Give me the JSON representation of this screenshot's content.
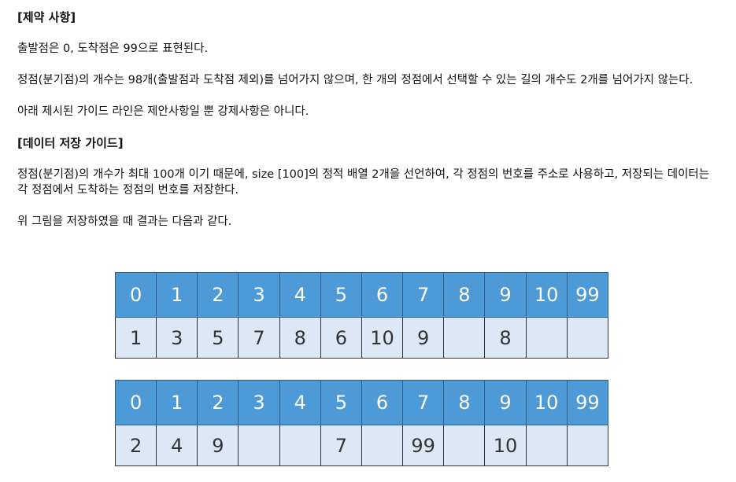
{
  "section1": {
    "heading": "[제약 사항]",
    "paragraphs": [
      "출발점은 0, 도착점은 99으로 표현된다.",
      "정점(분기점)의 개수는 98개(출발점과 도착점 제외)를 넘어가지 않으며, 한 개의 정점에서 선택할 수 있는 길의 개수도 2개를 넘어가지 않는다.",
      "아래 제시된 가이드 라인은 제안사항일 뿐 강제사항은 아니다."
    ]
  },
  "section2": {
    "heading": "[데이터 저장 가이드]",
    "paragraphs": [
      "정점(분기점)의 개수가 최대 100개 이기 때문에, size [100]의 정적 배열 2개을 선언하여, 각 정점의 번호를 주소로 사용하고, 저장되는 데이터는 각 정점에서 도착하는 정점의 번호를 저장한다.",
      "위 그림을 저장하였을 때 결과는 다음과 같다."
    ]
  },
  "colors": {
    "index_row_bg": "#4e9ad6",
    "value_row_bg": "#dce8f5"
  },
  "arrays": [
    {
      "indices": [
        "0",
        "1",
        "2",
        "3",
        "4",
        "5",
        "6",
        "7",
        "8",
        "9",
        "10",
        "99"
      ],
      "values": [
        "1",
        "3",
        "5",
        "7",
        "8",
        "6",
        "10",
        "9",
        "",
        "8",
        "",
        ""
      ]
    },
    {
      "indices": [
        "0",
        "1",
        "2",
        "3",
        "4",
        "5",
        "6",
        "7",
        "8",
        "9",
        "10",
        "99"
      ],
      "values": [
        "2",
        "4",
        "9",
        "",
        "",
        "7",
        "",
        "99",
        "",
        "10",
        "",
        ""
      ]
    }
  ]
}
